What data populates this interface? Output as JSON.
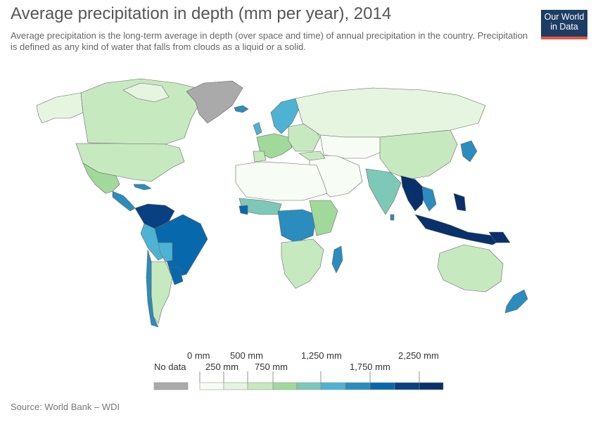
{
  "title": "Average precipitation in depth (mm per year), 2014",
  "subtitle": "Average precipitation is the long-term average in depth (over space and time) of annual precipitation in the country. Precipitation is defined as any kind of water that falls from clouds as a liquid or a solid.",
  "logo": {
    "line1": "Our World",
    "line2": "in Data"
  },
  "source": "Source: World Bank – WDI",
  "legend": {
    "no_data_label": "No data",
    "labels_top": [
      "0 mm",
      "500 mm",
      "1,250 mm",
      "2,250 mm"
    ],
    "labels_bottom": [
      "250 mm",
      "750 mm",
      "1,750 mm"
    ],
    "colors": {
      "no_data": "#aaaaaa",
      "bins": [
        "#f7fcf5",
        "#e5f5e0",
        "#c7e9c0",
        "#a1d99b",
        "#7ec8b8",
        "#4eb3d3",
        "#2b8cbe",
        "#0868ac",
        "#084081",
        "#08306b"
      ]
    }
  },
  "colors": {
    "ocean": "#ffffff",
    "border": "#555555",
    "greenland": "#aaaaaa"
  }
}
